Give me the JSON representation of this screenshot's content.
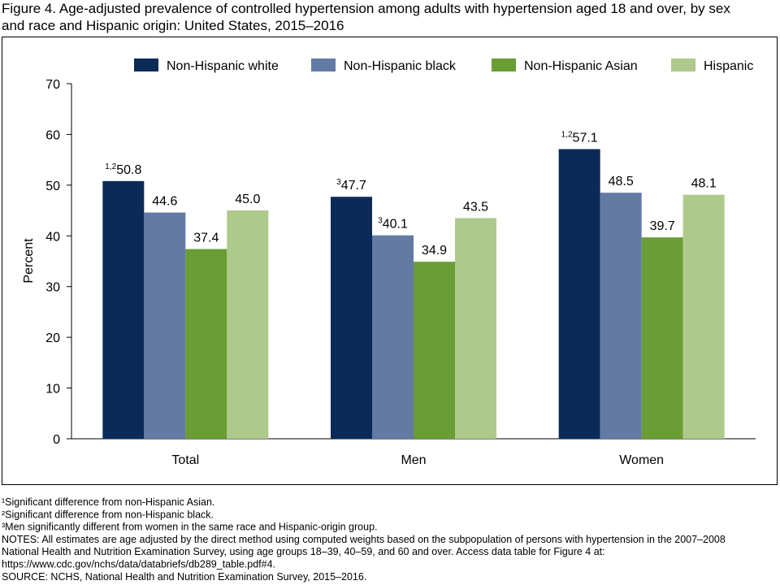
{
  "chart_data": {
    "type": "bar",
    "title_lines": [
      "Figure 4. Age-adjusted prevalence of controlled hypertension among adults with hypertension aged 18 and over, by sex",
      "and race and Hispanic origin: United States, 2015–2016"
    ],
    "y_label": "Percent",
    "categories": [
      "Total",
      "Men",
      "Women"
    ],
    "series": [
      {
        "name": "Non-Hispanic white",
        "color": "#0b2a58",
        "values": [
          50.8,
          47.7,
          57.1
        ],
        "notes": [
          "1,2",
          "3",
          "1,2"
        ]
      },
      {
        "name": "Non-Hispanic black",
        "color": "#637aa5",
        "values": [
          44.6,
          40.1,
          48.5
        ],
        "notes": [
          null,
          "3",
          null
        ]
      },
      {
        "name": "Non-Hispanic Asian",
        "color": "#6a9d34",
        "values": [
          37.4,
          34.9,
          39.7
        ],
        "notes": [
          null,
          null,
          null
        ]
      },
      {
        "name": "Hispanic",
        "color": "#adc98b",
        "values": [
          45.0,
          43.5,
          48.1
        ],
        "value_labels": [
          "45.0",
          "43.5",
          "48.1"
        ],
        "notes": [
          null,
          null,
          null
        ]
      }
    ],
    "ylim": [
      0,
      70
    ],
    "yticks": [
      0,
      10,
      20,
      30,
      40,
      50,
      60,
      70
    ],
    "legend": "top",
    "footnotes": [
      "¹Significant difference from non-Hispanic Asian.",
      "²Significant difference from non-Hispanic black.",
      "³Men significantly different from women in the same race and Hispanic-origin group.",
      "NOTES: All estimates are age adjusted by the direct method using computed weights based on the subpopulation of persons with hypertension in the 2007–2008",
      "National Health and Nutrition Examination Survey, using age groups 18–39, 40–59, and 60 and over. Access data table for Figure 4 at:",
      "https://www.cdc.gov/nchs/data/databriefs/db289_table.pdf#4.",
      "SOURCE: NCHS, National Health and Nutrition Examination Survey, 2015–2016."
    ]
  }
}
